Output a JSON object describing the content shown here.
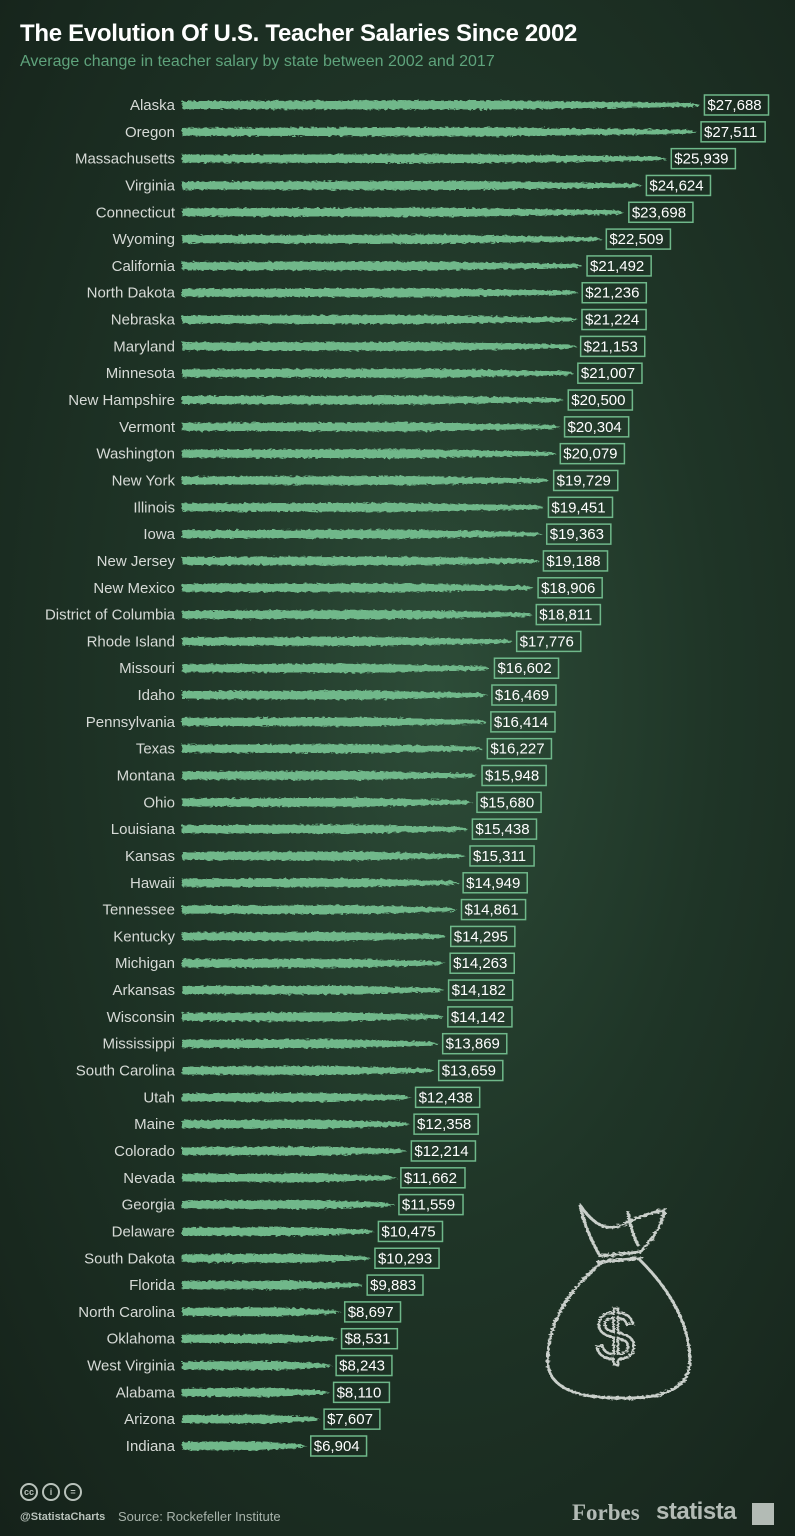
{
  "chart_data": {
    "type": "bar",
    "orientation": "horizontal",
    "title": "The Evolution Of U.S. Teacher Salaries Since 2002",
    "subtitle": "Average change in teacher salary by state between 2002 and 2017",
    "value_prefix": "$",
    "categories": [
      "Alaska",
      "Oregon",
      "Massachusetts",
      "Virginia",
      "Connecticut",
      "Wyoming",
      "California",
      "North Dakota",
      "Nebraska",
      "Maryland",
      "Minnesota",
      "New Hampshire",
      "Vermont",
      "Washington",
      "New York",
      "Illinois",
      "Iowa",
      "New Jersey",
      "New Mexico",
      "District of Columbia",
      "Rhode Island",
      "Missouri",
      "Idaho",
      "Pennsylvania",
      "Texas",
      "Montana",
      "Ohio",
      "Louisiana",
      "Kansas",
      "Hawaii",
      "Tennessee",
      "Kentucky",
      "Michigan",
      "Arkansas",
      "Wisconsin",
      "Mississippi",
      "South Carolina",
      "Utah",
      "Maine",
      "Colorado",
      "Nevada",
      "Georgia",
      "Delaware",
      "South Dakota",
      "Florida",
      "North Carolina",
      "Oklahoma",
      "West Virginia",
      "Alabama",
      "Arizona",
      "Indiana"
    ],
    "values": [
      27688,
      27511,
      25939,
      24624,
      23698,
      22509,
      21492,
      21236,
      21224,
      21153,
      21007,
      20500,
      20304,
      20079,
      19729,
      19451,
      19363,
      19188,
      18906,
      18811,
      17776,
      16602,
      16469,
      16414,
      16227,
      15948,
      15680,
      15438,
      15311,
      14949,
      14861,
      14295,
      14263,
      14182,
      14142,
      13869,
      13659,
      12438,
      12358,
      12214,
      11662,
      11559,
      10475,
      10293,
      9883,
      8697,
      8531,
      8243,
      8110,
      7607,
      6904
    ],
    "data_labels": [
      "$27,688",
      "$27,511",
      "$25,939",
      "$24,624",
      "$23,698",
      "$22,509",
      "$21,492",
      "$21,236",
      "$21,224",
      "$21,153",
      "$21,007",
      "$20,500",
      "$20,304",
      "$20,079",
      "$19,729",
      "$19,451",
      "$19,363",
      "$19,188",
      "$18,906",
      "$18,811",
      "$17,776",
      "$16,602",
      "$16,469",
      "$16,414",
      "$16,227",
      "$15,948",
      "$15,680",
      "$15,438",
      "$15,311",
      "$14,949",
      "$14,861",
      "$14,295",
      "$14,263",
      "$14,182",
      "$14,142",
      "$13,869",
      "$13,659",
      "$12,438",
      "$12,358",
      "$12,214",
      "$11,662",
      "$11,559",
      "$10,475",
      "$10,293",
      "$9,883",
      "$8,697",
      "$8,531",
      "$8,243",
      "$8,110",
      "$7,607",
      "$6,904"
    ],
    "grid": false,
    "legend": "none",
    "colors": {
      "bar": "#6fb88a",
      "background": "#1f3527",
      "subtitle": "#5fa37c"
    }
  },
  "footer": {
    "handle": "@StatistaCharts",
    "source": "Source: Rockefeller Institute",
    "brand1": "Forbes",
    "brand2": "statista",
    "license_icons": [
      "cc-icon",
      "by-icon",
      "nd-icon"
    ]
  }
}
